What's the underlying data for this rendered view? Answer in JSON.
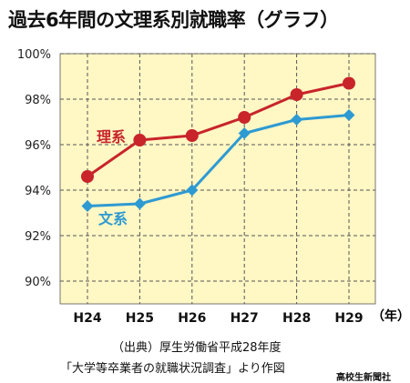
{
  "title": "過去6年間の文理系別就職率（グラフ）",
  "source_line1": "（出典）厚生労働省平成28年度",
  "source_line2": "「大学等卒業者の就職状況調査」より作図",
  "credit": "高校生新聞社",
  "colors": {
    "background": "#fff7c4",
    "grid": "#555555",
    "science": "#c8242a",
    "humanities": "#2e9ad2"
  },
  "chart_data": {
    "type": "line",
    "categories": [
      "H24",
      "H25",
      "H26",
      "H27",
      "H28",
      "H29"
    ],
    "x_unit": "（年）",
    "y_ticks": [
      "90%",
      "92%",
      "94%",
      "96%",
      "98%",
      "100%"
    ],
    "ylim": [
      89,
      100
    ],
    "grid": true,
    "series": [
      {
        "name": "理系",
        "marker": "circle",
        "values": [
          94.6,
          96.2,
          96.4,
          97.2,
          98.2,
          98.7
        ]
      },
      {
        "name": "文系",
        "marker": "diamond",
        "values": [
          93.3,
          93.4,
          94.0,
          96.5,
          97.1,
          97.3
        ]
      }
    ]
  }
}
